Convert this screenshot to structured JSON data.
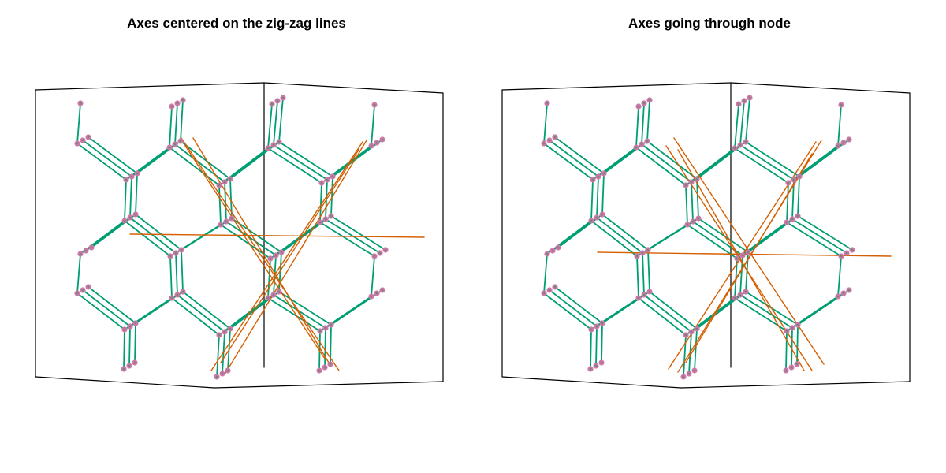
{
  "panels": [
    {
      "title": "Axes centered on the zig-zag lines"
    },
    {
      "title": "Axes going through node"
    }
  ],
  "colors": {
    "bond": "#009e73",
    "node_fill": "#cc79a7",
    "node_center": "#7f7f7f",
    "axis": "#d55e00",
    "box": "#000000"
  }
}
